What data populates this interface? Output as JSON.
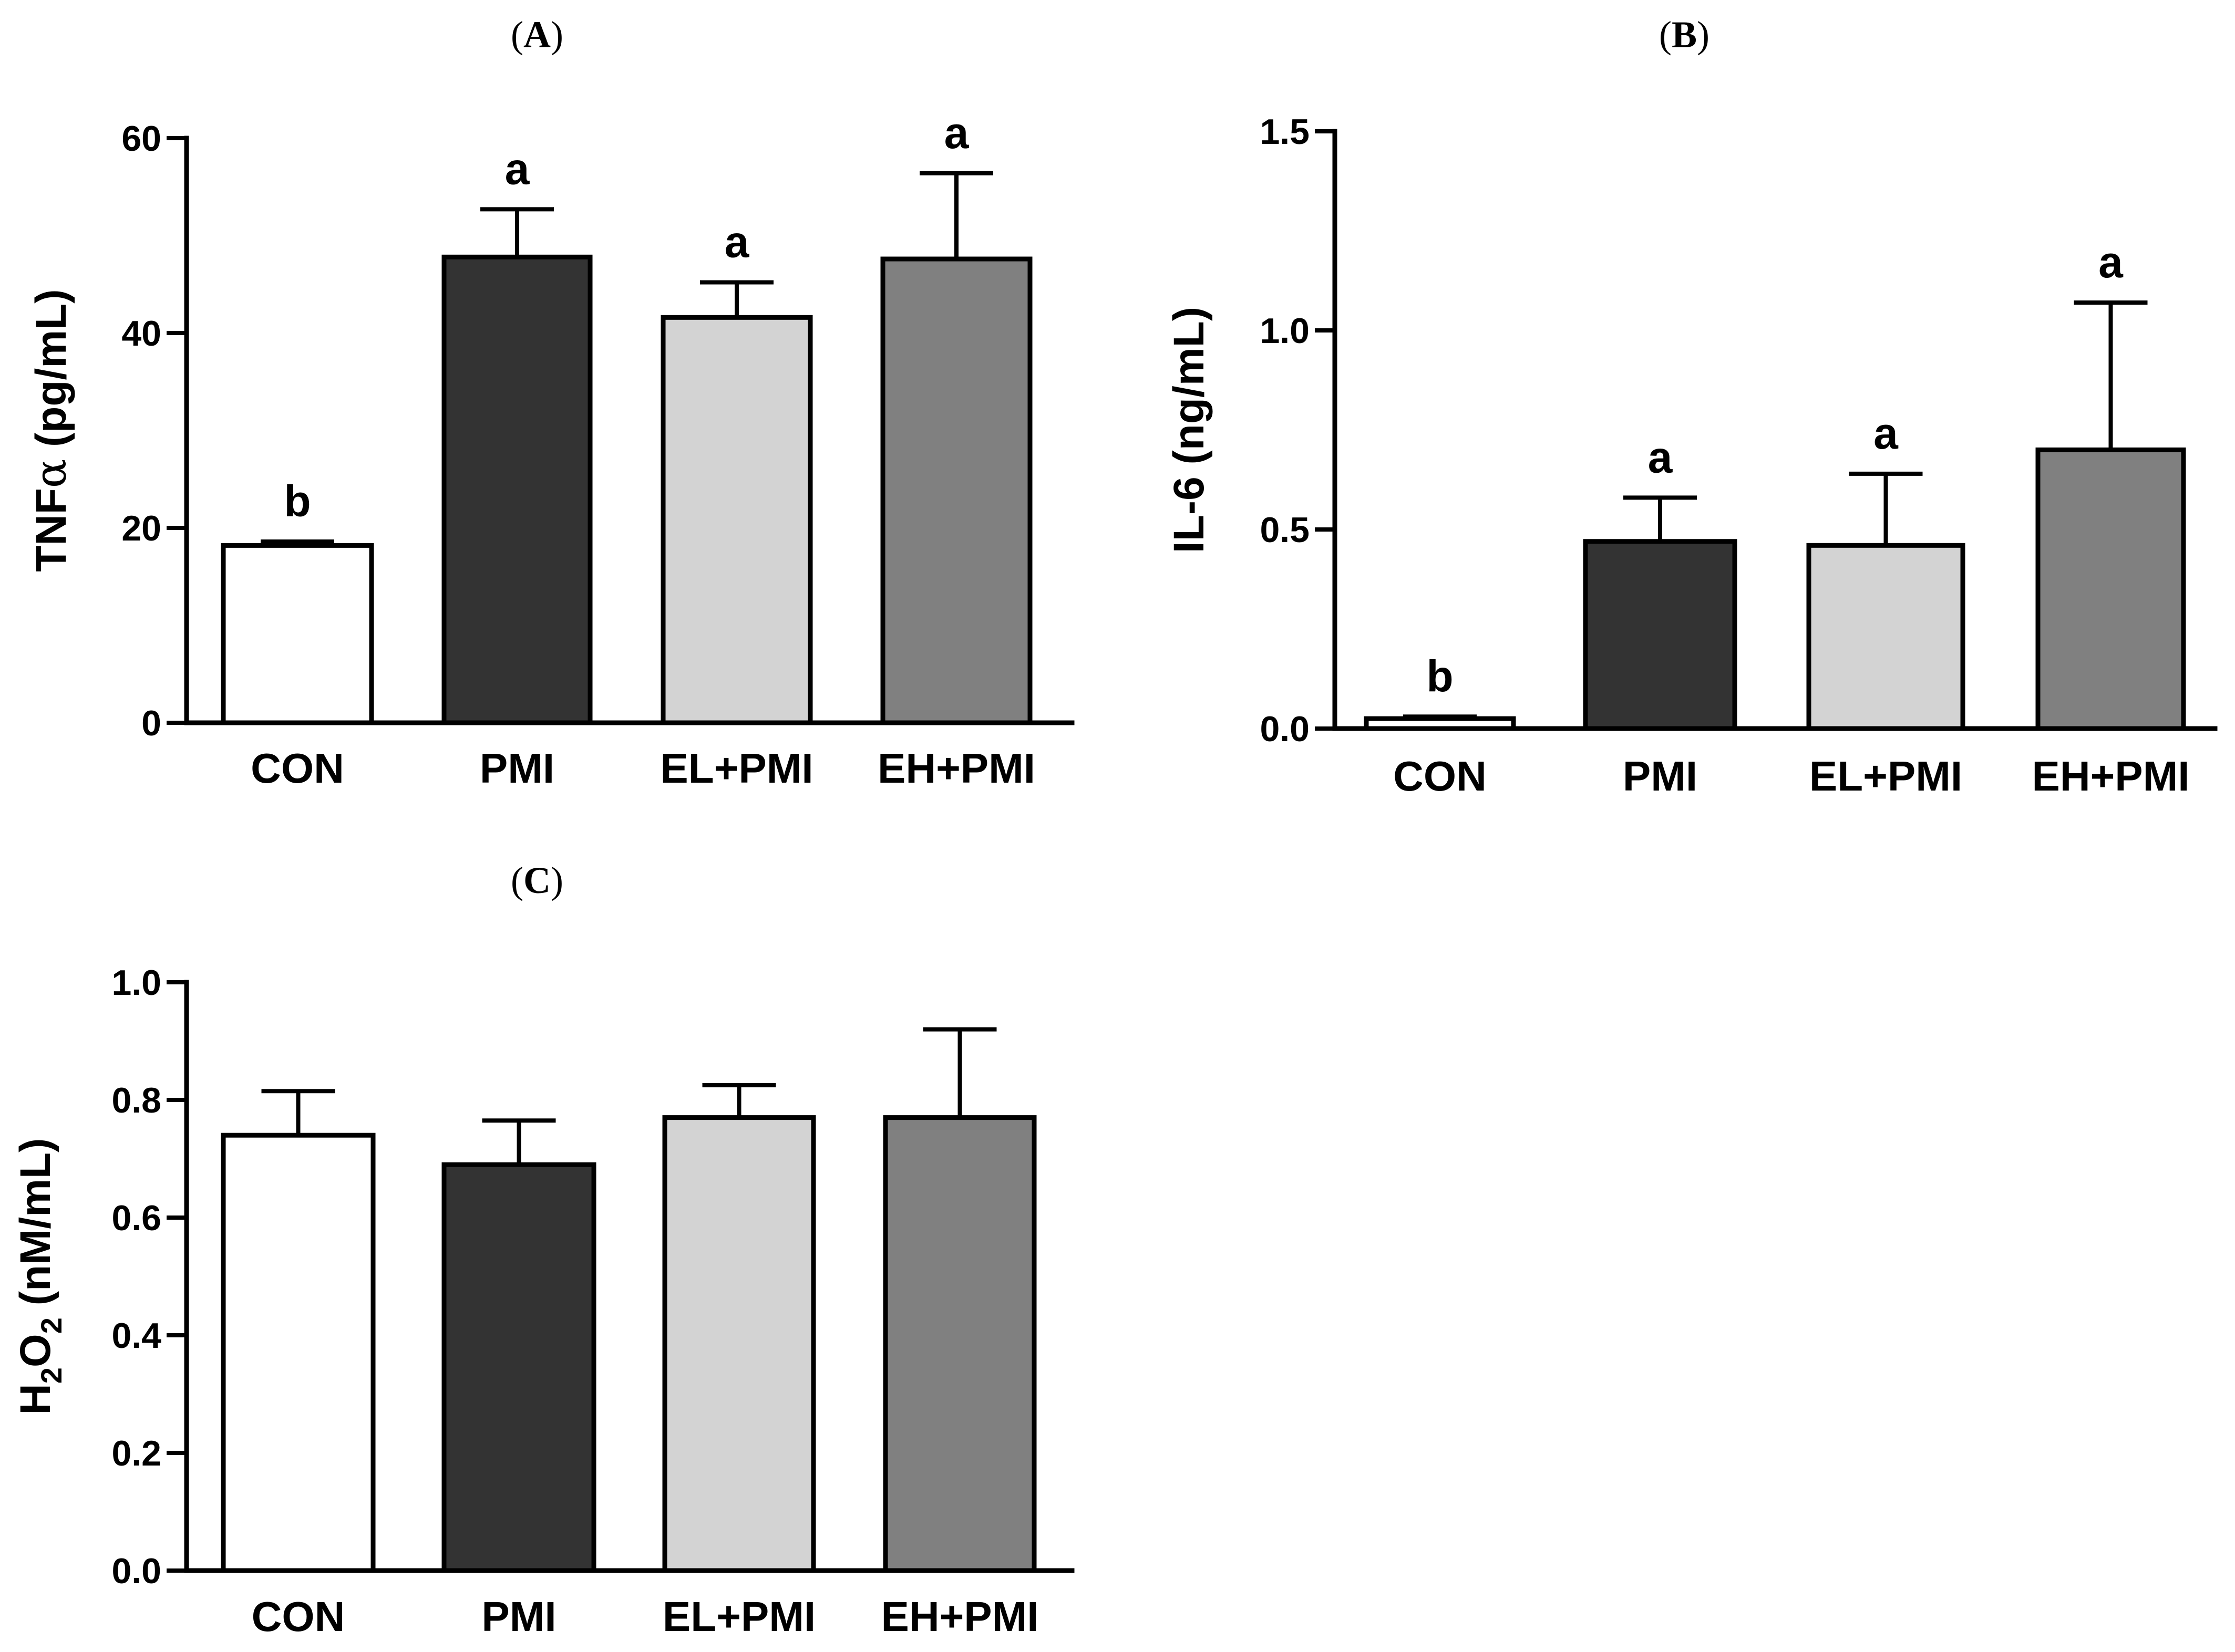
{
  "chart_data": [
    {
      "type": "bar",
      "panel": "(A)",
      "panel_parts": [
        "(",
        "A",
        ")"
      ],
      "ylabel": "TNFα (pg/mL)",
      "ylabel_parts": [
        "TNF",
        "α",
        " (pg/mL)"
      ],
      "categories": [
        "CON",
        "PMI",
        "EL+PMI",
        "EH+PMI"
      ],
      "values": [
        18.2,
        47.8,
        41.6,
        47.6
      ],
      "errors": [
        0.4,
        4.9,
        3.6,
        8.8
      ],
      "significance": [
        "b",
        "a",
        "a",
        "a"
      ],
      "ylim": [
        0,
        60
      ],
      "yticks": [
        0,
        20,
        40,
        60
      ],
      "ytick_labels": [
        "0",
        "20",
        "40",
        "60"
      ],
      "colors": [
        "#ffffff",
        "#333333",
        "#d3d3d3",
        "#808080"
      ]
    },
    {
      "type": "bar",
      "panel": "(B)",
      "panel_parts": [
        "(",
        "B",
        ")"
      ],
      "ylabel": "IL-6 (ng/mL)",
      "ylabel_parts": [
        "IL-6 (ng/mL)"
      ],
      "categories": [
        "CON",
        "PMI",
        "EL+PMI",
        "EH+PMI"
      ],
      "values": [
        0.025,
        0.47,
        0.46,
        0.7
      ],
      "errors": [
        0.005,
        0.11,
        0.18,
        0.37
      ],
      "significance": [
        "b",
        "a",
        "a",
        "a"
      ],
      "ylim": [
        0,
        1.5
      ],
      "yticks": [
        0,
        0.5,
        1.0,
        1.5
      ],
      "ytick_labels": [
        "0.0",
        "0.5",
        "1.0",
        "1.5"
      ],
      "colors": [
        "#ffffff",
        "#333333",
        "#d3d3d3",
        "#808080"
      ]
    },
    {
      "type": "bar",
      "panel": "(C)",
      "panel_parts": [
        "(",
        "C",
        ")"
      ],
      "ylabel": "H2O2 (nM/mL)",
      "ylabel_parts": [
        "H",
        "2",
        "O",
        "2",
        " (nM/mL)"
      ],
      "categories": [
        "CON",
        "PMI",
        "EL+PMI",
        "EH+PMI"
      ],
      "values": [
        0.74,
        0.69,
        0.77,
        0.77
      ],
      "errors": [
        0.075,
        0.075,
        0.055,
        0.15
      ],
      "significance": [
        "",
        "",
        "",
        ""
      ],
      "ylim": [
        0,
        1.0
      ],
      "yticks": [
        0,
        0.2,
        0.4,
        0.6,
        0.8,
        1.0
      ],
      "ytick_labels": [
        "0.0",
        "0.2",
        "0.4",
        "0.6",
        "0.8",
        "1.0"
      ],
      "colors": [
        "#ffffff",
        "#333333",
        "#d3d3d3",
        "#808080"
      ]
    }
  ]
}
